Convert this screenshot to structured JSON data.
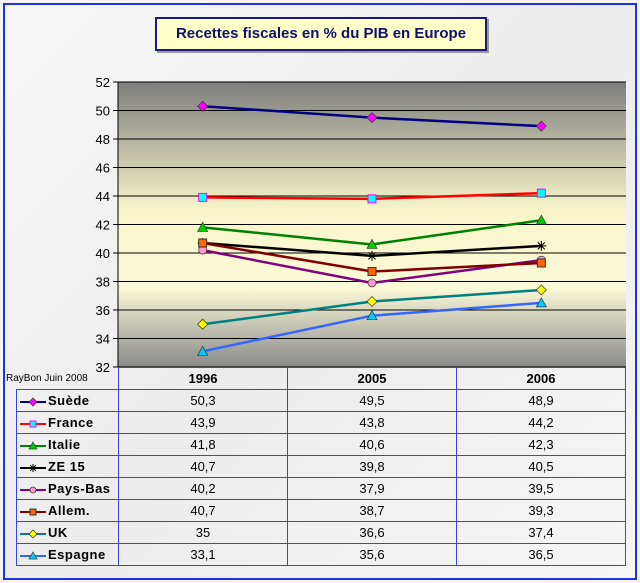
{
  "chart_data": {
    "type": "line",
    "title": "Recettes fiscales en % du PIB en Europe",
    "credit": "RayBon Juin 2008",
    "categories": [
      "1996",
      "2005",
      "2006"
    ],
    "ylim": [
      32,
      52
    ],
    "yticks": [
      32,
      34,
      36,
      38,
      40,
      42,
      44,
      46,
      48,
      50,
      52
    ],
    "grid": true,
    "legend": "table-bottom",
    "series": [
      {
        "name": "Suède",
        "values": [
          50.3,
          49.5,
          48.9
        ],
        "labels": [
          "50,3",
          "49,5",
          "48,9"
        ],
        "line": "#000080",
        "marker": "diamond",
        "fill": "#ff00ff"
      },
      {
        "name": "France",
        "values": [
          43.9,
          43.8,
          44.2
        ],
        "labels": [
          "43,9",
          "43,8",
          "44,2"
        ],
        "line": "#ff0000",
        "marker": "square",
        "fill": "#00ffff",
        "stroke": "#ff00ff"
      },
      {
        "name": "Italie",
        "values": [
          41.8,
          40.6,
          42.3
        ],
        "labels": [
          "41,8",
          "40,6",
          "42,3"
        ],
        "line": "#008000",
        "marker": "triangle",
        "fill": "#00cc00"
      },
      {
        "name": "ZE 15",
        "values": [
          40.7,
          39.8,
          40.5
        ],
        "labels": [
          "40,7",
          "39,8",
          "40,5"
        ],
        "line": "#000000",
        "marker": "star",
        "fill": "#000000"
      },
      {
        "name": "Pays-Bas",
        "values": [
          40.2,
          37.9,
          39.5
        ],
        "labels": [
          "40,2",
          "37,9",
          "39,5"
        ],
        "line": "#800080",
        "marker": "circle",
        "fill": "#ff99cc"
      },
      {
        "name": "Allem.",
        "values": [
          40.7,
          38.7,
          39.3
        ],
        "labels": [
          "40,7",
          "38,7",
          "39,3"
        ],
        "line": "#800000",
        "marker": "square",
        "fill": "#ff6600"
      },
      {
        "name": "UK",
        "values": [
          35,
          36.6,
          37.4
        ],
        "labels": [
          "35",
          "36,6",
          "37,4"
        ],
        "line": "#008080",
        "marker": "diamond",
        "fill": "#ffff00"
      },
      {
        "name": "Espagne",
        "values": [
          33.1,
          35.6,
          36.5
        ],
        "labels": [
          "33,1",
          "35,6",
          "36,5"
        ],
        "line": "#3366ff",
        "marker": "triangle",
        "fill": "#00ccff"
      }
    ]
  }
}
